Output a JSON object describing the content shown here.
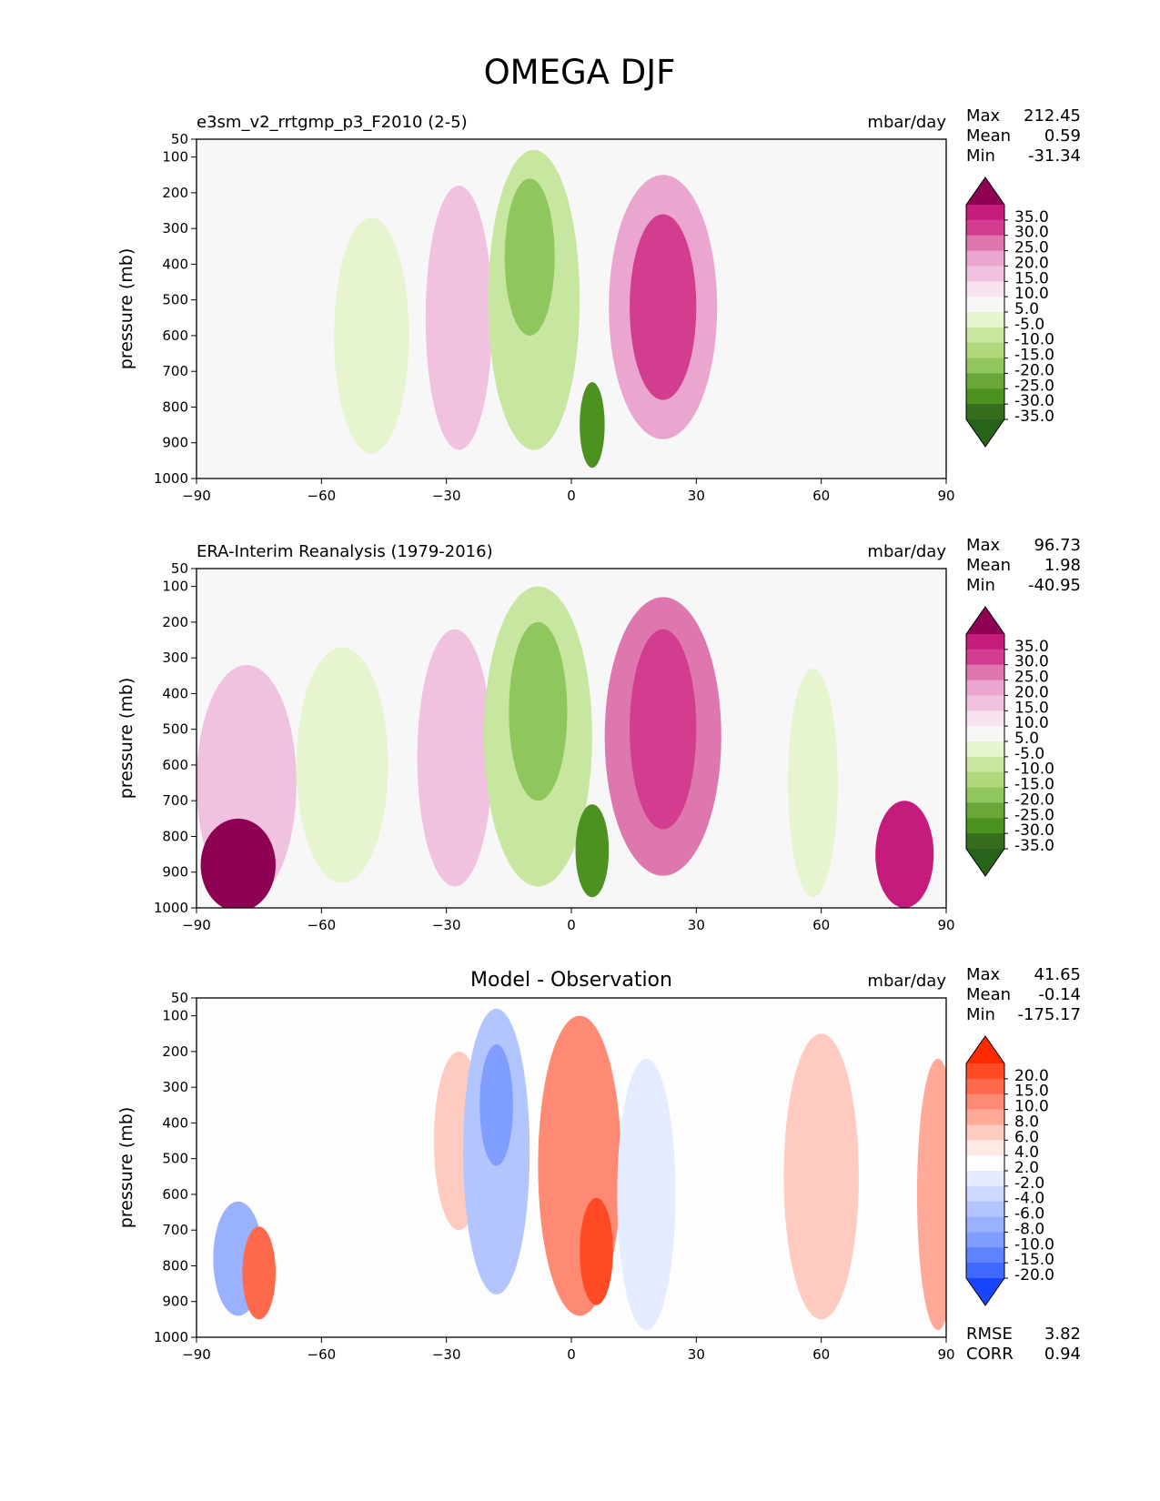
{
  "figure": {
    "title": "OMEGA DJF"
  },
  "chart_data": [
    {
      "type": "contour",
      "panel": "test",
      "title": "e3sm_v2_rrtgmp_p3_F2010 (2-5)",
      "center_title": "",
      "units": "mbar/day",
      "xlabel": "",
      "ylabel": "pressure (mb)",
      "xlim": [
        -90,
        90
      ],
      "ylim": [
        1000,
        50
      ],
      "x_ticks": [
        -90,
        -60,
        -30,
        0,
        30,
        60,
        90
      ],
      "y_ticks": [
        50,
        100,
        200,
        300,
        400,
        500,
        600,
        700,
        800,
        900,
        1000
      ],
      "stats": {
        "labels": [
          "Max",
          "Mean",
          "Min"
        ],
        "values": [
          "212.45",
          "0.59",
          "-31.34"
        ]
      },
      "colorbar": {
        "labels": [
          "35.0",
          "30.0",
          "25.0",
          "20.0",
          "15.0",
          "10.0",
          "5.0",
          "-5.0",
          "-10.0",
          "-15.0",
          "-20.0",
          "-25.0",
          "-30.0",
          "-35.0"
        ],
        "colors": [
          "#8e0152",
          "#c51b7d",
          "#d33d8f",
          "#de77ae",
          "#eaa6cf",
          "#f1c2e0",
          "#f7e2ef",
          "#f7f7f7",
          "#e6f5d0",
          "#c7e6a0",
          "#b0d97c",
          "#8fc65e",
          "#6aa73a",
          "#4d9221",
          "#356d1d",
          "#276419"
        ]
      },
      "contours": [
        {
          "name": "positive cell near -30",
          "cx": -27,
          "cp": 550,
          "rx": 8,
          "rp": 370,
          "value": 10
        },
        {
          "name": "positive cell at 22N",
          "cx": 22,
          "cp": 520,
          "rx": 13,
          "rp": 370,
          "value": 15
        },
        {
          "name": "positive core at 22N",
          "cx": 22,
          "cp": 520,
          "rx": 8,
          "rp": 260,
          "value": 25
        },
        {
          "name": "negative band near -48",
          "cx": -48,
          "cp": 600,
          "rx": 9,
          "rp": 330,
          "value": -10
        },
        {
          "name": "negative cell at -10",
          "cx": -9,
          "cp": 500,
          "rx": 11,
          "rp": 420,
          "value": -15
        },
        {
          "name": "negative core at -10",
          "cx": -10,
          "cp": 380,
          "rx": 6,
          "rp": 220,
          "value": -25
        },
        {
          "name": "negative core at 5",
          "cx": 5,
          "cp": 850,
          "rx": 3,
          "rp": 120,
          "value": -35
        }
      ]
    },
    {
      "type": "contour",
      "panel": "reference",
      "title": "ERA-Interim Reanalysis (1979-2016)",
      "center_title": "",
      "units": "mbar/day",
      "xlabel": "",
      "ylabel": "pressure (mb)",
      "xlim": [
        -90,
        90
      ],
      "ylim": [
        1000,
        50
      ],
      "x_ticks": [
        -90,
        -60,
        -30,
        0,
        30,
        60,
        90
      ],
      "y_ticks": [
        50,
        100,
        200,
        300,
        400,
        500,
        600,
        700,
        800,
        900,
        1000
      ],
      "stats": {
        "labels": [
          "Max",
          "Mean",
          "Min"
        ],
        "values": [
          "96.73",
          "1.98",
          "-40.95"
        ]
      },
      "colorbar": {
        "labels": [
          "35.0",
          "30.0",
          "25.0",
          "20.0",
          "15.0",
          "10.0",
          "5.0",
          "-5.0",
          "-10.0",
          "-15.0",
          "-20.0",
          "-25.0",
          "-30.0",
          "-35.0"
        ],
        "colors": [
          "#8e0152",
          "#c51b7d",
          "#d33d8f",
          "#de77ae",
          "#eaa6cf",
          "#f1c2e0",
          "#f7e2ef",
          "#f7f7f7",
          "#e6f5d0",
          "#c7e6a0",
          "#b0d97c",
          "#8fc65e",
          "#6aa73a",
          "#4d9221",
          "#356d1d",
          "#276419"
        ]
      },
      "contours": [
        {
          "name": "positive high-latitude south",
          "cx": -78,
          "cp": 650,
          "rx": 12,
          "rp": 330,
          "value": 10
        },
        {
          "name": "strong positive south",
          "cx": -80,
          "cp": 880,
          "rx": 9,
          "rp": 130,
          "value": 35
        },
        {
          "name": "positive cell near -30",
          "cx": -28,
          "cp": 580,
          "rx": 9,
          "rp": 360,
          "value": 10
        },
        {
          "name": "positive cell at 22N",
          "cx": 22,
          "cp": 520,
          "rx": 14,
          "rp": 390,
          "value": 20
        },
        {
          "name": "positive core at 22N",
          "cx": 22,
          "cp": 500,
          "rx": 8,
          "rp": 280,
          "value": 25
        },
        {
          "name": "negative band near -55",
          "cx": -55,
          "cp": 600,
          "rx": 11,
          "rp": 330,
          "value": -10
        },
        {
          "name": "negative cell at -8",
          "cx": -8,
          "cp": 520,
          "rx": 13,
          "rp": 420,
          "value": -15
        },
        {
          "name": "negative core at -8",
          "cx": -8,
          "cp": 450,
          "rx": 7,
          "rp": 250,
          "value": -25
        },
        {
          "name": "negative core at 5",
          "cx": 5,
          "cp": 840,
          "rx": 4,
          "rp": 130,
          "value": -35
        },
        {
          "name": "negative band near 58",
          "cx": 58,
          "cp": 650,
          "rx": 6,
          "rp": 320,
          "value": -10
        },
        {
          "name": "positive north high-latitude",
          "cx": 80,
          "cp": 850,
          "rx": 7,
          "rp": 150,
          "value": 30
        }
      ]
    },
    {
      "type": "contour",
      "panel": "difference",
      "title": "",
      "center_title": "Model - Observation",
      "units": "mbar/day",
      "xlabel": "",
      "ylabel": "pressure (mb)",
      "xlim": [
        -90,
        90
      ],
      "ylim": [
        1000,
        50
      ],
      "x_ticks": [
        -90,
        -60,
        -30,
        0,
        30,
        60,
        90
      ],
      "y_ticks": [
        50,
        100,
        200,
        300,
        400,
        500,
        600,
        700,
        800,
        900,
        1000
      ],
      "stats": {
        "labels": [
          "Max",
          "Mean",
          "Min"
        ],
        "values": [
          "41.65",
          "-0.14",
          "-175.17"
        ]
      },
      "metrics": {
        "labels": [
          "RMSE",
          "CORR"
        ],
        "values": [
          "3.82",
          "0.94"
        ]
      },
      "colorbar": {
        "labels": [
          "20.0",
          "15.0",
          "10.0",
          "8.0",
          "6.0",
          "4.0",
          "2.0",
          "-2.0",
          "-4.0",
          "-6.0",
          "-8.0",
          "-10.0",
          "-15.0",
          "-20.0"
        ],
        "colors": [
          "#ff2a00",
          "#ff4a26",
          "#ff6a4d",
          "#ff8a73",
          "#ffaa99",
          "#ffcabf",
          "#ffeae6",
          "#ffffff",
          "#e6ecff",
          "#ccd8ff",
          "#b3c5ff",
          "#99b1ff",
          "#809eff",
          "#5f82ff",
          "#4068ff",
          "#1a45ff"
        ]
      },
      "contours": [
        {
          "name": "positive cell near -27",
          "cx": -27,
          "cp": 450,
          "rx": 6,
          "rp": 250,
          "value": 4
        },
        {
          "name": "negative cell at -18",
          "cx": -18,
          "cp": 480,
          "rx": 8,
          "rp": 400,
          "value": -8
        },
        {
          "name": "negative core at -18",
          "cx": -18,
          "cp": 350,
          "rx": 4,
          "rp": 170,
          "value": -15
        },
        {
          "name": "positive cell at 2",
          "cx": 2,
          "cp": 520,
          "rx": 10,
          "rp": 420,
          "value": 8
        },
        {
          "name": "positive core at 6",
          "cx": 6,
          "cp": 760,
          "rx": 4,
          "rp": 150,
          "value": 15
        },
        {
          "name": "negative band at 18",
          "cx": 18,
          "cp": 600,
          "rx": 7,
          "rp": 380,
          "value": -4
        },
        {
          "name": "positive band at 60",
          "cx": 60,
          "cp": 550,
          "rx": 9,
          "rp": 400,
          "value": 4
        },
        {
          "name": "positive band at 88",
          "cx": 88,
          "cp": 600,
          "rx": 5,
          "rp": 380,
          "value": 6
        },
        {
          "name": "negative south high-latitude",
          "cx": -80,
          "cp": 780,
          "rx": 6,
          "rp": 160,
          "value": -10
        },
        {
          "name": "positive south high-latitude",
          "cx": -75,
          "cp": 820,
          "rx": 4,
          "rp": 130,
          "value": 10
        }
      ]
    }
  ]
}
